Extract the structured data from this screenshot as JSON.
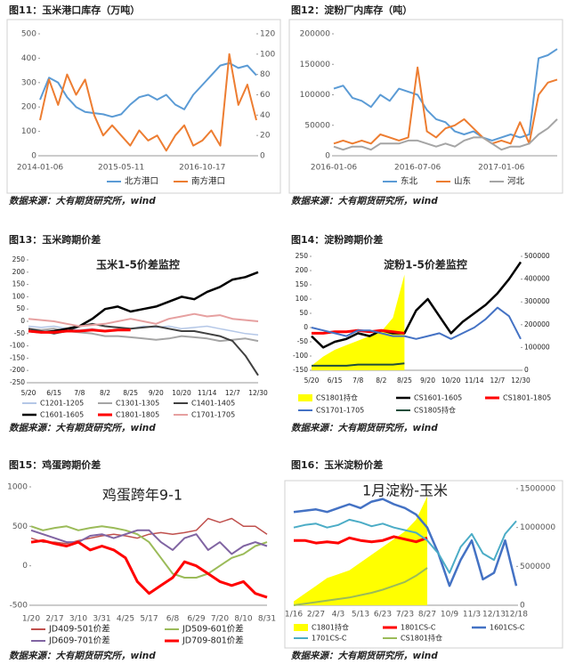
{
  "chart_data": [
    {
      "type": "line",
      "title": "图11：玉米港口库存（万吨）",
      "source": "数据来源：大有期货研究所，wind",
      "categories": [
        "2014-01-06",
        null,
        null,
        null,
        null,
        null,
        null,
        null,
        null,
        "2015-05-11",
        null,
        null,
        null,
        null,
        null,
        null,
        null,
        null,
        "2016-10-17",
        null,
        null,
        null,
        null,
        null,
        null
      ],
      "ylim": [
        0,
        500
      ],
      "yticks": [
        0,
        100,
        200,
        300,
        400,
        500
      ],
      "y2lim": [
        0,
        120
      ],
      "y2ticks": [
        0,
        20,
        40,
        60,
        80,
        100,
        120
      ],
      "series": [
        {
          "name": "北方港口",
          "color": "#5b9bd5",
          "width": 2,
          "values": [
            230,
            320,
            300,
            240,
            200,
            180,
            175,
            170,
            160,
            170,
            210,
            240,
            250,
            230,
            250,
            210,
            190,
            250,
            290,
            330,
            370,
            380,
            360,
            370,
            330
          ]
        },
        {
          "name": "南方港口",
          "color": "#ed7d31",
          "width": 2,
          "axis": "y2",
          "values": [
            35,
            75,
            50,
            80,
            60,
            75,
            40,
            20,
            30,
            20,
            10,
            25,
            15,
            20,
            5,
            20,
            30,
            10,
            15,
            25,
            10,
            100,
            50,
            70,
            35
          ]
        }
      ]
    },
    {
      "type": "line",
      "title": "图12：淀粉厂内库存（吨）",
      "source": "数据来源：大有期货研究所，wind",
      "categories": [
        "2016-01-06",
        null,
        null,
        null,
        null,
        null,
        null,
        null,
        null,
        "2016-07-06",
        null,
        null,
        null,
        null,
        null,
        null,
        null,
        null,
        "2017-01-06",
        null,
        null,
        null,
        null,
        null,
        null
      ],
      "ylim": [
        0,
        200000
      ],
      "yticks": [
        0,
        50000,
        100000,
        150000,
        200000
      ],
      "series": [
        {
          "name": "东北",
          "color": "#5b9bd5",
          "width": 2,
          "values": [
            110000,
            115000,
            95000,
            90000,
            80000,
            100000,
            90000,
            110000,
            105000,
            100000,
            75000,
            60000,
            55000,
            40000,
            35000,
            40000,
            30000,
            25000,
            30000,
            35000,
            30000,
            35000,
            160000,
            165000,
            175000
          ]
        },
        {
          "name": "山东",
          "color": "#ed7d31",
          "width": 2,
          "values": [
            20000,
            25000,
            20000,
            25000,
            20000,
            35000,
            30000,
            25000,
            30000,
            145000,
            40000,
            30000,
            45000,
            50000,
            60000,
            45000,
            30000,
            20000,
            25000,
            20000,
            55000,
            20000,
            100000,
            120000,
            125000
          ]
        },
        {
          "name": "河北",
          "color": "#a5a5a5",
          "width": 2,
          "values": [
            15000,
            10000,
            15000,
            15000,
            10000,
            20000,
            20000,
            20000,
            25000,
            25000,
            20000,
            15000,
            20000,
            15000,
            25000,
            30000,
            30000,
            20000,
            10000,
            15000,
            15000,
            20000,
            35000,
            45000,
            60000
          ]
        }
      ]
    },
    {
      "type": "line",
      "title": "图13：玉米跨期价差",
      "subtitle": "玉米1-5价差监控",
      "source": "数据来源：大有期货研究所，wind",
      "categories": [
        "5/20",
        null,
        "6/15",
        null,
        "7/8",
        null,
        "8/2",
        null,
        "8/25",
        null,
        "9/20",
        null,
        "10/20",
        null,
        "11/14",
        null,
        "12/7",
        null,
        "12/30"
      ],
      "ylim": [
        -250,
        250
      ],
      "yticks": [
        -250,
        -200,
        -150,
        -100,
        -50,
        0,
        50,
        100,
        150,
        200,
        250
      ],
      "series": [
        {
          "name": "C1201-1205",
          "color": "#b4c7e7",
          "width": 1.5,
          "values": [
            -20,
            -25,
            -20,
            -30,
            -35,
            -30,
            -40,
            -35,
            -30,
            -20,
            -25,
            -20,
            -30,
            -25,
            -20,
            -30,
            -40,
            -50,
            -55
          ]
        },
        {
          "name": "C1301-1305",
          "color": "#a5a5a5",
          "width": 2,
          "values": [
            -30,
            -35,
            -30,
            -40,
            -45,
            -50,
            -60,
            -60,
            -65,
            -70,
            -75,
            -70,
            -60,
            -65,
            -70,
            -80,
            -75,
            -70,
            -80
          ]
        },
        {
          "name": "C1401-1405",
          "color": "#404040",
          "width": 2,
          "values": [
            -30,
            -40,
            -50,
            -40,
            -20,
            -10,
            -20,
            -25,
            -30,
            -25,
            -20,
            -30,
            -40,
            -40,
            -50,
            -60,
            -80,
            -140,
            -220
          ]
        },
        {
          "name": "C1601-1605",
          "color": "#000000",
          "width": 2.5,
          "values": [
            -40,
            -45,
            -40,
            -30,
            -20,
            10,
            50,
            60,
            40,
            50,
            60,
            80,
            100,
            90,
            120,
            140,
            170,
            180,
            200
          ]
        },
        {
          "name": "C1801-1805",
          "color": "#ff0000",
          "width": 3,
          "values": [
            -40,
            -45,
            -45,
            -40,
            -40,
            -35,
            -40,
            -35,
            -35,
            null,
            null,
            null,
            null,
            null,
            null,
            null,
            null,
            null,
            null
          ]
        },
        {
          "name": "C1701-1705",
          "color": "#e6a0a0",
          "width": 2,
          "values": [
            10,
            5,
            0,
            -10,
            -20,
            -15,
            -10,
            0,
            10,
            0,
            -10,
            10,
            20,
            30,
            20,
            25,
            10,
            5,
            0
          ]
        }
      ]
    },
    {
      "type": "line",
      "title": "图14：淀粉跨期价差",
      "subtitle": "淀粉1-5价差监控",
      "source": "数据来源：大有期货研究所，wind",
      "categories": [
        "5/20",
        null,
        "6/15",
        null,
        "7/8",
        null,
        "8/2",
        null,
        "8/25",
        null,
        "9/20",
        null,
        "10/20",
        null,
        "11/14",
        null,
        "12/7",
        null,
        "12/30"
      ],
      "ylim": [
        -150,
        250
      ],
      "yticks": [
        -150,
        -100,
        -50,
        0,
        50,
        100,
        150,
        200,
        250
      ],
      "y2lim": [
        0,
        500000
      ],
      "y2ticks": [
        0,
        100000,
        200000,
        300000,
        400000,
        500000
      ],
      "series": [
        {
          "name": "CS1801持仓",
          "color": "#ffff00",
          "kind": "area",
          "axis": "y2",
          "values": [
            20000,
            60000,
            90000,
            110000,
            130000,
            150000,
            170000,
            230000,
            420000,
            null,
            null,
            null,
            null,
            null,
            null,
            null,
            null,
            null,
            null
          ]
        },
        {
          "name": "CS1601-1605",
          "color": "#000000",
          "width": 2.5,
          "values": [
            -30,
            -70,
            -50,
            -40,
            -20,
            -30,
            -10,
            -20,
            -20,
            60,
            100,
            40,
            -20,
            20,
            50,
            80,
            120,
            170,
            230
          ]
        },
        {
          "name": "CS1801-1805",
          "color": "#ff0000",
          "width": 3,
          "values": [
            -20,
            -20,
            -15,
            -15,
            -10,
            -15,
            -10,
            -15,
            -20,
            null,
            null,
            null,
            null,
            null,
            null,
            null,
            null,
            null,
            null
          ]
        },
        {
          "name": "CS1701-1705",
          "color": "#4472c4",
          "width": 2,
          "values": [
            0,
            -10,
            -20,
            -30,
            -10,
            -10,
            -20,
            -30,
            -30,
            -40,
            -30,
            -20,
            -40,
            -20,
            0,
            30,
            70,
            40,
            -40
          ]
        },
        {
          "name": "CS1805持仓",
          "color": "#1e4d3b",
          "width": 2,
          "axis": "y2",
          "values": [
            20000,
            20000,
            20000,
            20000,
            25000,
            25000,
            25000,
            25000,
            30000,
            null,
            null,
            null,
            null,
            null,
            null,
            null,
            null,
            null,
            null
          ]
        }
      ]
    },
    {
      "type": "line",
      "title": "图15：鸡蛋跨期价差",
      "subtitle": "鸡蛋跨年9-1",
      "source": "数据来源：大有期货研究所，wind",
      "categories": [
        "1/20",
        null,
        "2/17",
        null,
        "3/10",
        null,
        "3/31",
        null,
        "4/25",
        null,
        "5/17",
        null,
        "6/8",
        null,
        "6/29",
        null,
        "7/20",
        null,
        "8/10",
        null,
        "8/31"
      ],
      "ylim": [
        -500,
        1000
      ],
      "yticks": [
        -500,
        0,
        500,
        1000
      ],
      "series": [
        {
          "name": "JD409-501价差",
          "color": "#c0504d",
          "width": 1.5,
          "values": [
            350,
            300,
            300,
            280,
            320,
            350,
            380,
            400,
            380,
            350,
            400,
            420,
            400,
            420,
            450,
            600,
            550,
            600,
            500,
            500,
            400
          ]
        },
        {
          "name": "JD509-601价差",
          "color": "#9bbb59",
          "width": 2,
          "values": [
            500,
            450,
            480,
            500,
            450,
            480,
            500,
            480,
            450,
            400,
            300,
            100,
            -100,
            -150,
            -150,
            -100,
            0,
            100,
            150,
            250,
            300
          ]
        },
        {
          "name": "JD609-701价差",
          "color": "#8064a2",
          "width": 2,
          "values": [
            450,
            400,
            350,
            300,
            300,
            380,
            400,
            350,
            400,
            450,
            450,
            300,
            200,
            350,
            400,
            200,
            300,
            150,
            250,
            300,
            250
          ]
        },
        {
          "name": "JD709-801价差",
          "color": "#ff0000",
          "width": 3,
          "values": [
            300,
            320,
            280,
            250,
            300,
            200,
            250,
            200,
            100,
            -200,
            -350,
            -250,
            -150,
            50,
            0,
            -100,
            -200,
            -250,
            -200,
            -350,
            -400
          ]
        }
      ]
    },
    {
      "type": "line",
      "title": "图16：玉米淀粉价差",
      "subtitle": "1月淀粉-玉米",
      "source": "数据来源：大有期货研究所，wind",
      "categories": [
        "1/16",
        null,
        "2/27",
        null,
        "4/3",
        null,
        "5/13",
        null,
        "6/23",
        null,
        "7/23",
        null,
        "8/27",
        null,
        "10/9",
        null,
        "11/3",
        null,
        "12/13",
        null,
        "12/18"
      ],
      "ylim": [
        -300,
        600
      ],
      "y2lim": [
        0,
        1500000
      ],
      "y2ticks": [
        0,
        500000,
        1000000,
        1500000
      ],
      "series": [
        {
          "name": "C1801持仓",
          "color": "#ffff00",
          "kind": "area",
          "axis": "y2",
          "values": [
            50000,
            150000,
            250000,
            350000,
            400000,
            450000,
            550000,
            650000,
            750000,
            850000,
            950000,
            1100000,
            1400000,
            null,
            null,
            null,
            null,
            null,
            null,
            null,
            null
          ]
        },
        {
          "name": "1801CS-C",
          "color": "#ff0000",
          "width": 3,
          "values": [
            200,
            200,
            180,
            190,
            180,
            220,
            200,
            190,
            200,
            230,
            210,
            190,
            220,
            null,
            null,
            null,
            null,
            null,
            null,
            null,
            null
          ]
        },
        {
          "name": "1601CS-C",
          "color": "#4472c4",
          "width": 2.5,
          "values": [
            420,
            430,
            440,
            420,
            450,
            480,
            450,
            500,
            520,
            480,
            450,
            400,
            300,
            100,
            -150,
            50,
            200,
            -100,
            -50,
            200,
            -150
          ]
        },
        {
          "name": "1701CS-C",
          "color": "#4bacc6",
          "width": 2,
          "values": [
            300,
            320,
            330,
            300,
            320,
            360,
            340,
            310,
            330,
            300,
            280,
            260,
            200,
            100,
            -50,
            150,
            250,
            100,
            50,
            250,
            350
          ]
        },
        {
          "name": "CS1801持仓",
          "color": "#9bbb59",
          "width": 2,
          "axis": "y2",
          "values": [
            0,
            20000,
            40000,
            60000,
            80000,
            100000,
            130000,
            160000,
            200000,
            250000,
            300000,
            380000,
            480000,
            null,
            null,
            null,
            null,
            null,
            null,
            null,
            null
          ]
        }
      ]
    }
  ]
}
